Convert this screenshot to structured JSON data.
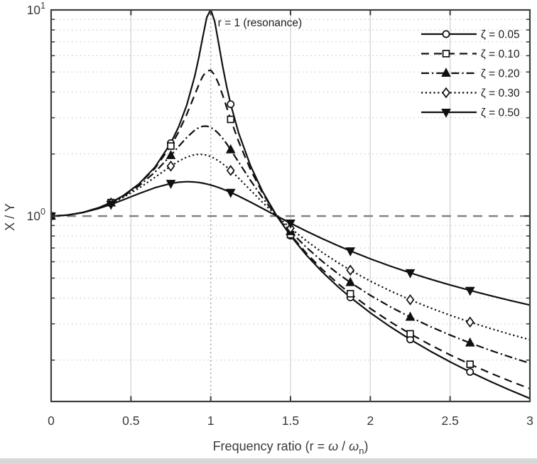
{
  "figure": {
    "background": "#ffffff",
    "bottom_strip_color": "#d8d8d8"
  },
  "chart_data": {
    "type": "line",
    "title": "",
    "annotation": "r = 1 (resonance)",
    "ylabel": "X / Y",
    "xlabel_parts": [
      {
        "t": "Frequency ratio (r = "
      },
      {
        "t": "ω",
        "italic": true
      },
      {
        "t": " / "
      },
      {
        "t": "ω",
        "italic": true
      },
      {
        "t": "n",
        "sub": true
      },
      {
        "t": ")"
      }
    ],
    "xlim": [
      0,
      3
    ],
    "ylim": [
      0.126,
      10
    ],
    "yscale": "log",
    "grid": true,
    "legend": {
      "position": "top-right",
      "box": false
    },
    "x_ticks": [
      0,
      0.5,
      1,
      1.5,
      2,
      2.5,
      3
    ],
    "x_tick_labels": [
      "0",
      "0.5",
      "1",
      "1.5",
      "2",
      "2.5",
      "3"
    ],
    "y_major_ticks": [
      {
        "value": 10,
        "base": "10",
        "exp": "1"
      },
      {
        "value": 1,
        "base": "10",
        "exp": "0"
      }
    ],
    "y_minor_ticks": [
      0.2,
      0.3,
      0.4,
      0.5,
      0.6,
      0.7,
      0.8,
      0.9,
      2,
      3,
      4,
      5,
      6,
      7,
      8,
      9
    ],
    "reference_lines": {
      "horizontal_at_y": 1,
      "vertical_at_x": 1
    },
    "x": [
      0,
      0.1,
      0.2,
      0.3,
      0.375,
      0.45,
      0.55,
      0.65,
      0.75,
      0.8,
      0.85,
      0.9,
      0.925,
      0.95,
      0.975,
      1,
      1.025,
      1.05,
      1.075,
      1.1,
      1.125,
      1.175,
      1.25,
      1.325,
      1.414,
      1.5,
      1.6,
      1.7,
      1.8,
      1.875,
      2,
      2.125,
      2.25,
      2.375,
      2.5,
      2.625,
      2.75,
      2.875,
      3
    ],
    "marker_x": [
      0,
      0.375,
      0.75,
      1.125,
      1.5,
      1.875,
      2.25,
      2.625
    ],
    "series": [
      {
        "id": "zeta-0.05",
        "label": "ζ = 0.05",
        "zeta": 0.05,
        "line": "solid",
        "marker": "circle",
        "marker_fill": "open",
        "values": [
          1.0,
          1.0101,
          1.0417,
          1.0988,
          1.1633,
          1.2532,
          1.4314,
          1.7244,
          2.259,
          2.7203,
          3.458,
          4.7757,
          5.857,
          7.379,
          9.193,
          10.0499,
          8.793,
          6.853,
          5.318,
          4.2436,
          3.488,
          2.5276,
          1.749,
          1.3149,
          1.0006,
          0.8032,
          0.6458,
          0.5345,
          0.4521,
          0.4033,
          0.3392,
          0.2903,
          0.2519,
          0.2212,
          0.1961,
          0.1753,
          0.1579,
          0.1431,
          0.1304
        ]
      },
      {
        "id": "zeta-0.10",
        "label": "ζ = 0.10",
        "zeta": 0.1,
        "line": "dashed",
        "marker": "square",
        "marker_fill": "open",
        "values": [
          1.0,
          1.0101,
          1.0416,
          1.0985,
          1.1624,
          1.2511,
          1.4247,
          1.7035,
          2.1864,
          2.5707,
          3.117,
          3.8822,
          4.3336,
          4.7663,
          5.065,
          5.099,
          4.8343,
          4.3727,
          3.8538,
          3.3666,
          2.9446,
          2.2964,
          1.6745,
          1.2919,
          1.0006,
          0.8122,
          0.6593,
          0.55,
          0.4685,
          0.4199,
          0.3559,
          0.3068,
          0.2683,
          0.2373,
          0.212,
          0.191,
          0.1733,
          0.1583,
          0.1454
        ]
      },
      {
        "id": "zeta-0.20",
        "label": "ζ = 0.20",
        "zeta": 0.2,
        "line": "dashdot",
        "marker": "triangle-up",
        "marker_fill": "filled",
        "values": [
          1.0,
          1.0101,
          1.0414,
          1.0973,
          1.1591,
          1.2428,
          1.4,
          1.6315,
          1.9681,
          2.1798,
          2.4067,
          2.611,
          2.6846,
          2.726,
          2.7304,
          2.6926,
          2.6162,
          2.5088,
          2.3804,
          2.2409,
          2.0986,
          1.827,
          1.4856,
          1.2262,
          1.0005,
          0.8411,
          0.7041,
          0.6021,
          0.5237,
          0.4762,
          0.4125,
          0.3629,
          0.3233,
          0.2912,
          0.2646,
          0.2423,
          0.2234,
          0.2072,
          0.1931
        ]
      },
      {
        "id": "zeta-0.30",
        "label": "ζ = 0.30",
        "zeta": 0.3,
        "line": "dotted",
        "marker": "diamond",
        "marker_fill": "open",
        "values": [
          1.0,
          1.0101,
          1.041,
          1.0953,
          1.1538,
          1.2302,
          1.3647,
          1.5403,
          1.7472,
          1.8487,
          1.9334,
          1.9853,
          1.9943,
          1.9905,
          1.9734,
          1.9437,
          1.9025,
          1.8517,
          1.7934,
          1.7299,
          1.6633,
          1.5271,
          1.3333,
          1.1647,
          1.0004,
          0.8734,
          0.7568,
          0.6651,
          0.5919,
          0.5462,
          0.4834,
          0.4333,
          0.3924,
          0.3586,
          0.3302,
          0.306,
          0.2851,
          0.267,
          0.2511
        ]
      },
      {
        "id": "zeta-0.50",
        "label": "ζ = 0.50",
        "zeta": 0.5,
        "line": "solid",
        "marker": "triangle-down",
        "marker_fill": "filled",
        "values": [
          1.0,
          1.01,
          1.04,
          1.0896,
          1.139,
          1.1975,
          1.2848,
          1.3717,
          1.4396,
          1.4598,
          1.4678,
          1.4626,
          1.455,
          1.4443,
          1.4306,
          1.4142,
          1.3954,
          1.3744,
          1.3517,
          1.3275,
          1.3022,
          1.2492,
          1.1678,
          1.0883,
          1.0002,
          0.9233,
          0.8443,
          0.7759,
          0.7166,
          0.6773,
          0.6202,
          0.5717,
          0.5302,
          0.4943,
          0.4631,
          0.4356,
          0.4113,
          0.3896,
          0.3701
        ]
      }
    ],
    "colors": {
      "curve": "#101010",
      "grid": "#cccccc",
      "axis": "#3e3e3e",
      "reference": "#7f7f7f",
      "resonance_line": "#9a9a9a",
      "text": "#3a3a3a"
    }
  }
}
